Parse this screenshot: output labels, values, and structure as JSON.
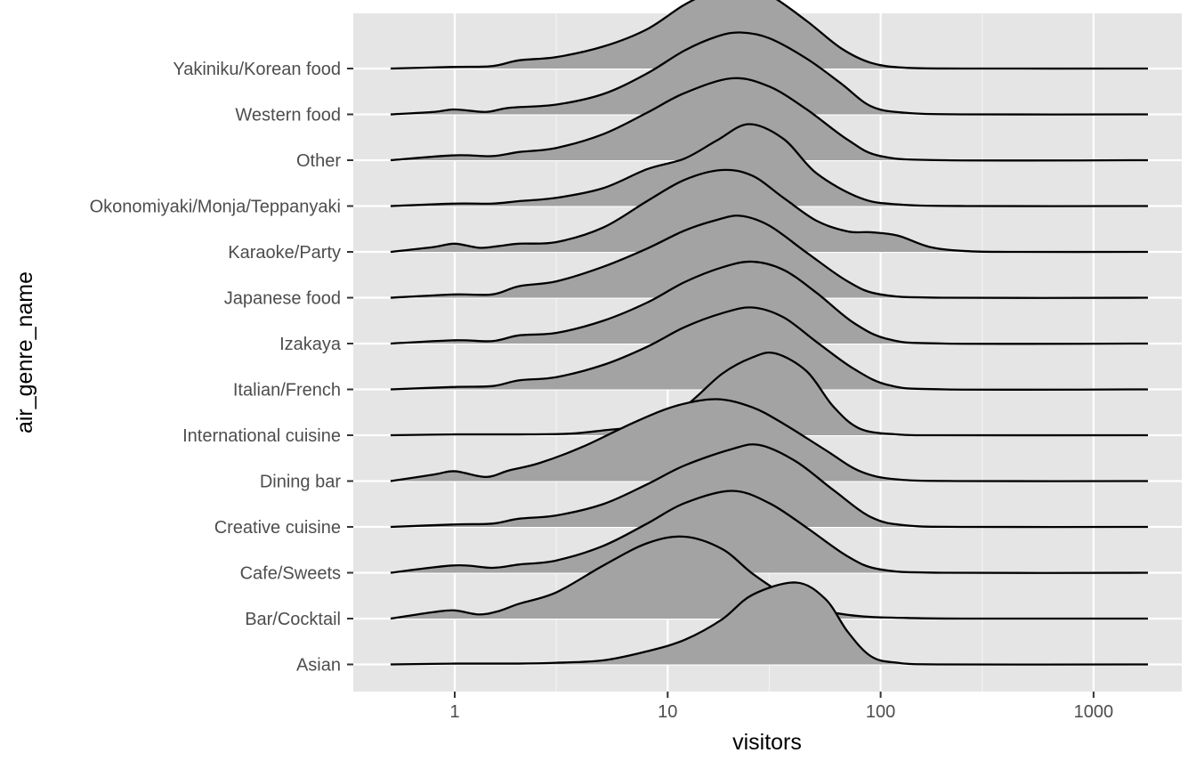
{
  "chart_data": {
    "type": "ridgeline",
    "xlabel": "visitors",
    "ylabel": "air_genre_name",
    "x_scale": "log10",
    "xlim": [
      0.4,
      2000
    ],
    "x_ticks": [
      1,
      10,
      100,
      1000
    ],
    "x_tick_labels": [
      "1",
      "10",
      "100",
      "1000"
    ],
    "grid": true,
    "background": "#e5e5e5",
    "grid_color": "#ffffff",
    "fill_color": "#a3a3a3",
    "line_color": "#000000",
    "categories": [
      "Asian",
      "Bar/Cocktail",
      "Cafe/Sweets",
      "Creative cuisine",
      "Dining bar",
      "International cuisine",
      "Italian/French",
      "Izakaya",
      "Japanese food",
      "Karaoke/Party",
      "Okonomiyaki/Monja/Teppanyaki",
      "Other",
      "Western food",
      "Yakiniku/Korean food"
    ],
    "series": [
      {
        "category": "Asian",
        "density": [
          [
            0.5,
            0
          ],
          [
            1,
            0.01
          ],
          [
            2,
            0.01
          ],
          [
            3,
            0.02
          ],
          [
            5,
            0.05
          ],
          [
            8,
            0.16
          ],
          [
            12,
            0.3
          ],
          [
            18,
            0.55
          ],
          [
            25,
            0.85
          ],
          [
            40,
            1.0
          ],
          [
            55,
            0.8
          ],
          [
            70,
            0.4
          ],
          [
            90,
            0.1
          ],
          [
            120,
            0.02
          ],
          [
            200,
            0
          ],
          [
            1800,
            0
          ]
        ]
      },
      {
        "category": "Bar/Cocktail",
        "density": [
          [
            0.5,
            0
          ],
          [
            0.8,
            0.08
          ],
          [
            1,
            0.1
          ],
          [
            1.3,
            0.05
          ],
          [
            1.6,
            0.09
          ],
          [
            2,
            0.18
          ],
          [
            3,
            0.32
          ],
          [
            5,
            0.65
          ],
          [
            8,
            0.92
          ],
          [
            12,
            1.0
          ],
          [
            18,
            0.85
          ],
          [
            25,
            0.55
          ],
          [
            35,
            0.3
          ],
          [
            50,
            0.12
          ],
          [
            80,
            0.03
          ],
          [
            150,
            0.005
          ],
          [
            300,
            0
          ],
          [
            1800,
            0
          ]
        ]
      },
      {
        "category": "Cafe/Sweets",
        "density": [
          [
            0.5,
            0
          ],
          [
            1,
            0.09
          ],
          [
            1.5,
            0.06
          ],
          [
            2,
            0.1
          ],
          [
            3,
            0.15
          ],
          [
            5,
            0.33
          ],
          [
            8,
            0.6
          ],
          [
            12,
            0.85
          ],
          [
            20,
            1.0
          ],
          [
            30,
            0.85
          ],
          [
            45,
            0.55
          ],
          [
            70,
            0.2
          ],
          [
            100,
            0.04
          ],
          [
            200,
            0
          ],
          [
            1800,
            0
          ]
        ]
      },
      {
        "category": "Creative cuisine",
        "density": [
          [
            0.5,
            0
          ],
          [
            1,
            0.03
          ],
          [
            1.5,
            0.04
          ],
          [
            2,
            0.1
          ],
          [
            3,
            0.14
          ],
          [
            5,
            0.28
          ],
          [
            8,
            0.52
          ],
          [
            12,
            0.75
          ],
          [
            20,
            0.95
          ],
          [
            27,
            1.0
          ],
          [
            40,
            0.8
          ],
          [
            60,
            0.45
          ],
          [
            90,
            0.12
          ],
          [
            130,
            0.02
          ],
          [
            250,
            0
          ],
          [
            1800,
            0
          ]
        ]
      },
      {
        "category": "Dining bar",
        "density": [
          [
            0.5,
            0
          ],
          [
            0.8,
            0.08
          ],
          [
            1,
            0.12
          ],
          [
            1.4,
            0.05
          ],
          [
            1.8,
            0.13
          ],
          [
            2.5,
            0.22
          ],
          [
            4,
            0.42
          ],
          [
            7,
            0.72
          ],
          [
            11,
            0.92
          ],
          [
            17,
            1.0
          ],
          [
            25,
            0.9
          ],
          [
            35,
            0.7
          ],
          [
            55,
            0.38
          ],
          [
            80,
            0.12
          ],
          [
            120,
            0.02
          ],
          [
            250,
            0
          ],
          [
            1800,
            0
          ]
        ]
      },
      {
        "category": "International cuisine",
        "density": [
          [
            0.5,
            0
          ],
          [
            1,
            0.01
          ],
          [
            2,
            0.01
          ],
          [
            3.5,
            0.02
          ],
          [
            5,
            0.06
          ],
          [
            8,
            0.13
          ],
          [
            12,
            0.35
          ],
          [
            18,
            0.75
          ],
          [
            25,
            0.95
          ],
          [
            32,
            1.0
          ],
          [
            45,
            0.78
          ],
          [
            60,
            0.35
          ],
          [
            80,
            0.08
          ],
          [
            120,
            0.01
          ],
          [
            200,
            0
          ],
          [
            1800,
            0
          ]
        ]
      },
      {
        "category": "Italian/French",
        "density": [
          [
            0.5,
            0
          ],
          [
            1,
            0.03
          ],
          [
            1.5,
            0.04
          ],
          [
            2,
            0.11
          ],
          [
            3,
            0.15
          ],
          [
            5,
            0.3
          ],
          [
            8,
            0.52
          ],
          [
            12,
            0.76
          ],
          [
            18,
            0.93
          ],
          [
            25,
            1.0
          ],
          [
            35,
            0.88
          ],
          [
            50,
            0.58
          ],
          [
            75,
            0.25
          ],
          [
            110,
            0.05
          ],
          [
            200,
            0
          ],
          [
            1800,
            0
          ]
        ]
      },
      {
        "category": "Izakaya",
        "density": [
          [
            0.5,
            0
          ],
          [
            1,
            0.04
          ],
          [
            1.5,
            0.03
          ],
          [
            2,
            0.1
          ],
          [
            3,
            0.13
          ],
          [
            5,
            0.28
          ],
          [
            8,
            0.5
          ],
          [
            12,
            0.75
          ],
          [
            18,
            0.93
          ],
          [
            25,
            1.0
          ],
          [
            35,
            0.9
          ],
          [
            50,
            0.62
          ],
          [
            75,
            0.25
          ],
          [
            110,
            0.05
          ],
          [
            200,
            0
          ],
          [
            1800,
            0
          ]
        ]
      },
      {
        "category": "Japanese food",
        "density": [
          [
            0.5,
            0
          ],
          [
            1,
            0.04
          ],
          [
            1.5,
            0.04
          ],
          [
            2,
            0.14
          ],
          [
            3,
            0.2
          ],
          [
            5,
            0.38
          ],
          [
            8,
            0.6
          ],
          [
            12,
            0.82
          ],
          [
            17,
            0.95
          ],
          [
            22,
            1.0
          ],
          [
            30,
            0.88
          ],
          [
            45,
            0.55
          ],
          [
            70,
            0.2
          ],
          [
            100,
            0.04
          ],
          [
            200,
            0
          ],
          [
            1800,
            0
          ]
        ]
      },
      {
        "category": "Karaoke/Party",
        "density": [
          [
            0.5,
            0
          ],
          [
            0.8,
            0.06
          ],
          [
            1,
            0.1
          ],
          [
            1.3,
            0.05
          ],
          [
            1.6,
            0.07
          ],
          [
            2,
            0.1
          ],
          [
            3,
            0.12
          ],
          [
            5,
            0.3
          ],
          [
            8,
            0.62
          ],
          [
            12,
            0.88
          ],
          [
            18,
            1.0
          ],
          [
            25,
            0.93
          ],
          [
            35,
            0.66
          ],
          [
            50,
            0.38
          ],
          [
            70,
            0.25
          ],
          [
            90,
            0.24
          ],
          [
            120,
            0.2
          ],
          [
            170,
            0.06
          ],
          [
            250,
            0.01
          ],
          [
            400,
            0
          ],
          [
            1800,
            0
          ]
        ]
      },
      {
        "category": "Okonomiyaki/Monja/Teppanyaki",
        "density": [
          [
            0.5,
            0
          ],
          [
            1,
            0.03
          ],
          [
            1.5,
            0.03
          ],
          [
            2,
            0.06
          ],
          [
            3,
            0.1
          ],
          [
            5,
            0.22
          ],
          [
            8,
            0.45
          ],
          [
            12,
            0.58
          ],
          [
            17,
            0.8
          ],
          [
            24,
            1.0
          ],
          [
            35,
            0.82
          ],
          [
            50,
            0.4
          ],
          [
            80,
            0.1
          ],
          [
            120,
            0.02
          ],
          [
            250,
            0
          ],
          [
            1800,
            0
          ]
        ]
      },
      {
        "category": "Other",
        "density": [
          [
            0.5,
            0
          ],
          [
            1,
            0.06
          ],
          [
            1.5,
            0.05
          ],
          [
            2,
            0.1
          ],
          [
            3,
            0.15
          ],
          [
            5,
            0.32
          ],
          [
            8,
            0.58
          ],
          [
            12,
            0.82
          ],
          [
            20,
            1.0
          ],
          [
            30,
            0.9
          ],
          [
            45,
            0.62
          ],
          [
            70,
            0.25
          ],
          [
            100,
            0.05
          ],
          [
            200,
            0
          ],
          [
            1800,
            0
          ]
        ]
      },
      {
        "category": "Western food",
        "density": [
          [
            0.5,
            0
          ],
          [
            0.8,
            0.03
          ],
          [
            1,
            0.06
          ],
          [
            1.4,
            0.03
          ],
          [
            1.8,
            0.08
          ],
          [
            3,
            0.12
          ],
          [
            5,
            0.25
          ],
          [
            8,
            0.5
          ],
          [
            12,
            0.78
          ],
          [
            17,
            0.95
          ],
          [
            22,
            1.0
          ],
          [
            30,
            0.93
          ],
          [
            45,
            0.68
          ],
          [
            65,
            0.38
          ],
          [
            90,
            0.1
          ],
          [
            130,
            0.02
          ],
          [
            250,
            0
          ],
          [
            1800,
            0
          ]
        ]
      },
      {
        "category": "Yakiniku/Korean food",
        "density": [
          [
            0.5,
            0
          ],
          [
            1,
            0.02
          ],
          [
            1.5,
            0.03
          ],
          [
            2,
            0.1
          ],
          [
            3,
            0.14
          ],
          [
            5,
            0.27
          ],
          [
            8,
            0.48
          ],
          [
            12,
            0.78
          ],
          [
            17,
            0.96
          ],
          [
            22,
            1.0
          ],
          [
            30,
            0.9
          ],
          [
            45,
            0.58
          ],
          [
            65,
            0.25
          ],
          [
            90,
            0.07
          ],
          [
            130,
            0.01
          ],
          [
            250,
            0
          ],
          [
            1800,
            0
          ]
        ]
      }
    ]
  }
}
